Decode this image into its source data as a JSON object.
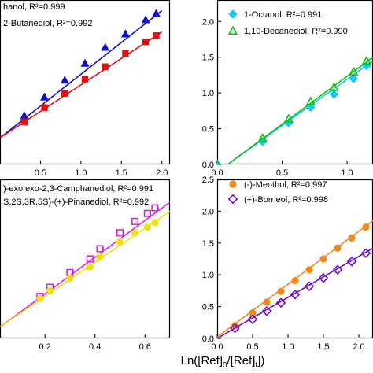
{
  "xlabel": {
    "prefix": "Ln([Ref]",
    "sub1": "0",
    "mid": "/[Ref]",
    "sub2": "t",
    "suffix": "])"
  },
  "chart_data": [
    {
      "type": "scatter",
      "id": "tl",
      "xlim": [
        0,
        2.1
      ],
      "ylim": [
        0,
        1.85
      ],
      "xticks": [
        0.5,
        1.0,
        1.5,
        2.0
      ],
      "xtick_labels": [
        "0.5",
        "1.0",
        "1.5",
        "2.0"
      ],
      "yticks": [],
      "ytick_labels": [],
      "series": [
        {
          "legend": "hanol, R²=0.999",
          "color": "#1010c8",
          "marker": "triangle-filled",
          "x": [
            0.3,
            0.55,
            0.8,
            1.05,
            1.3,
            1.55,
            1.8,
            1.93
          ],
          "y": [
            0.55,
            0.76,
            0.95,
            1.14,
            1.32,
            1.47,
            1.63,
            1.7
          ],
          "fit": [
            [
              0,
              0.3
            ],
            [
              2.0,
              1.73
            ]
          ]
        },
        {
          "legend": "2-Butanediol, R²=0.992",
          "color": "#e01010",
          "marker": "square-filled",
          "x": [
            0.3,
            0.55,
            0.8,
            1.05,
            1.3,
            1.55,
            1.8,
            1.93
          ],
          "y": [
            0.48,
            0.64,
            0.8,
            0.96,
            1.1,
            1.25,
            1.38,
            1.45
          ],
          "fit": [
            [
              0,
              0.3
            ],
            [
              2.0,
              1.49
            ]
          ]
        }
      ]
    },
    {
      "type": "scatter",
      "id": "tr",
      "xlim": [
        0,
        1.2
      ],
      "ylim": [
        0,
        2.3
      ],
      "xticks": [
        0.0,
        0.5,
        1.0
      ],
      "xtick_labels": [
        "0.0",
        "0.5",
        "1.0"
      ],
      "yticks": [
        0.0,
        0.5,
        1.0,
        1.5,
        2.0
      ],
      "ytick_labels": [
        "0.0",
        "0.5",
        "1.0",
        "1.5",
        "2.0"
      ],
      "series": [
        {
          "legend": "1-Octanol, R²=0.991",
          "color": "#18c8f0",
          "marker": "diamond-filled",
          "x": [
            0.0,
            0.35,
            0.55,
            0.72,
            0.9,
            1.05,
            1.15
          ],
          "y": [
            0.0,
            0.32,
            0.58,
            0.8,
            0.98,
            1.2,
            1.38
          ],
          "fit": [
            [
              0.08,
              0.0
            ],
            [
              1.2,
              1.45
            ]
          ]
        },
        {
          "legend": "1,10-Decanediol, R²=0.990",
          "color": "#10c010",
          "marker": "triangle-open",
          "x": [
            0.0,
            0.35,
            0.55,
            0.72,
            0.9,
            1.05,
            1.15
          ],
          "y": [
            0.0,
            0.37,
            0.64,
            0.88,
            1.08,
            1.3,
            1.45
          ],
          "fit": [
            [
              0.08,
              0.0
            ],
            [
              1.2,
              1.5
            ]
          ]
        }
      ]
    },
    {
      "type": "scatter",
      "id": "bl",
      "xlim": [
        0.02,
        0.7
      ],
      "ylim": [
        0,
        1.4
      ],
      "xticks": [
        0.2,
        0.4,
        0.6
      ],
      "xtick_labels": [
        "0.2",
        "0.4",
        "0.6"
      ],
      "yticks": [],
      "ytick_labels": [],
      "series": [
        {
          "legend": ")-exo,exo-2,3-Camphanediol, R²=0.991",
          "color": "#e020e0",
          "marker": "square-open",
          "x": [
            0.18,
            0.22,
            0.3,
            0.38,
            0.42,
            0.5,
            0.56,
            0.61,
            0.64
          ],
          "y": [
            0.37,
            0.45,
            0.58,
            0.7,
            0.79,
            0.93,
            1.03,
            1.1,
            1.15
          ],
          "fit": [
            [
              0.02,
              0.1
            ],
            [
              0.7,
              1.2
            ]
          ]
        },
        {
          "legend": "S,2S,3R,5S)-(+)-Pinanediol, R²=0.992",
          "color": "#f0e010",
          "marker": "circle-filled",
          "x": [
            0.18,
            0.22,
            0.3,
            0.38,
            0.42,
            0.5,
            0.56,
            0.61,
            0.64
          ],
          "y": [
            0.35,
            0.42,
            0.53,
            0.63,
            0.72,
            0.85,
            0.93,
            0.98,
            1.02
          ],
          "fit": [
            [
              0.02,
              0.1
            ],
            [
              0.7,
              1.12
            ]
          ]
        }
      ]
    },
    {
      "type": "scatter",
      "id": "br",
      "xlim": [
        0,
        2.2
      ],
      "ylim": [
        0,
        2.5
      ],
      "xticks": [
        0.0,
        0.5,
        1.0,
        1.5,
        2.0
      ],
      "xtick_labels": [
        "0.0",
        "0.5",
        "1.0",
        "1.5",
        "2.0"
      ],
      "yticks": [
        0.0,
        0.5,
        1.0,
        1.5,
        2.0,
        2.5
      ],
      "ytick_labels": [
        "0.0",
        "0.5",
        "1.0",
        "1.5",
        "2.0",
        "2.5"
      ],
      "series": [
        {
          "legend": "(-)-Menthol, R²=0.997",
          "color": "#f08a20",
          "marker": "circle-filled",
          "x": [
            0.25,
            0.5,
            0.7,
            0.9,
            1.1,
            1.3,
            1.5,
            1.7,
            1.9,
            2.1
          ],
          "y": [
            0.2,
            0.4,
            0.57,
            0.74,
            0.91,
            1.08,
            1.25,
            1.42,
            1.58,
            1.75
          ],
          "fit": [
            [
              0,
              0.02
            ],
            [
              2.2,
              1.85
            ]
          ]
        },
        {
          "legend": "(+)-Borneol, R²=0.998",
          "color": "#7010c8",
          "marker": "diamond-open",
          "x": [
            0.25,
            0.5,
            0.7,
            0.9,
            1.1,
            1.3,
            1.5,
            1.7,
            1.9,
            2.1
          ],
          "y": [
            0.16,
            0.3,
            0.43,
            0.56,
            0.69,
            0.82,
            0.95,
            1.08,
            1.21,
            1.34
          ],
          "fit": [
            [
              0,
              0.0
            ],
            [
              2.2,
              1.42
            ]
          ]
        }
      ]
    }
  ]
}
